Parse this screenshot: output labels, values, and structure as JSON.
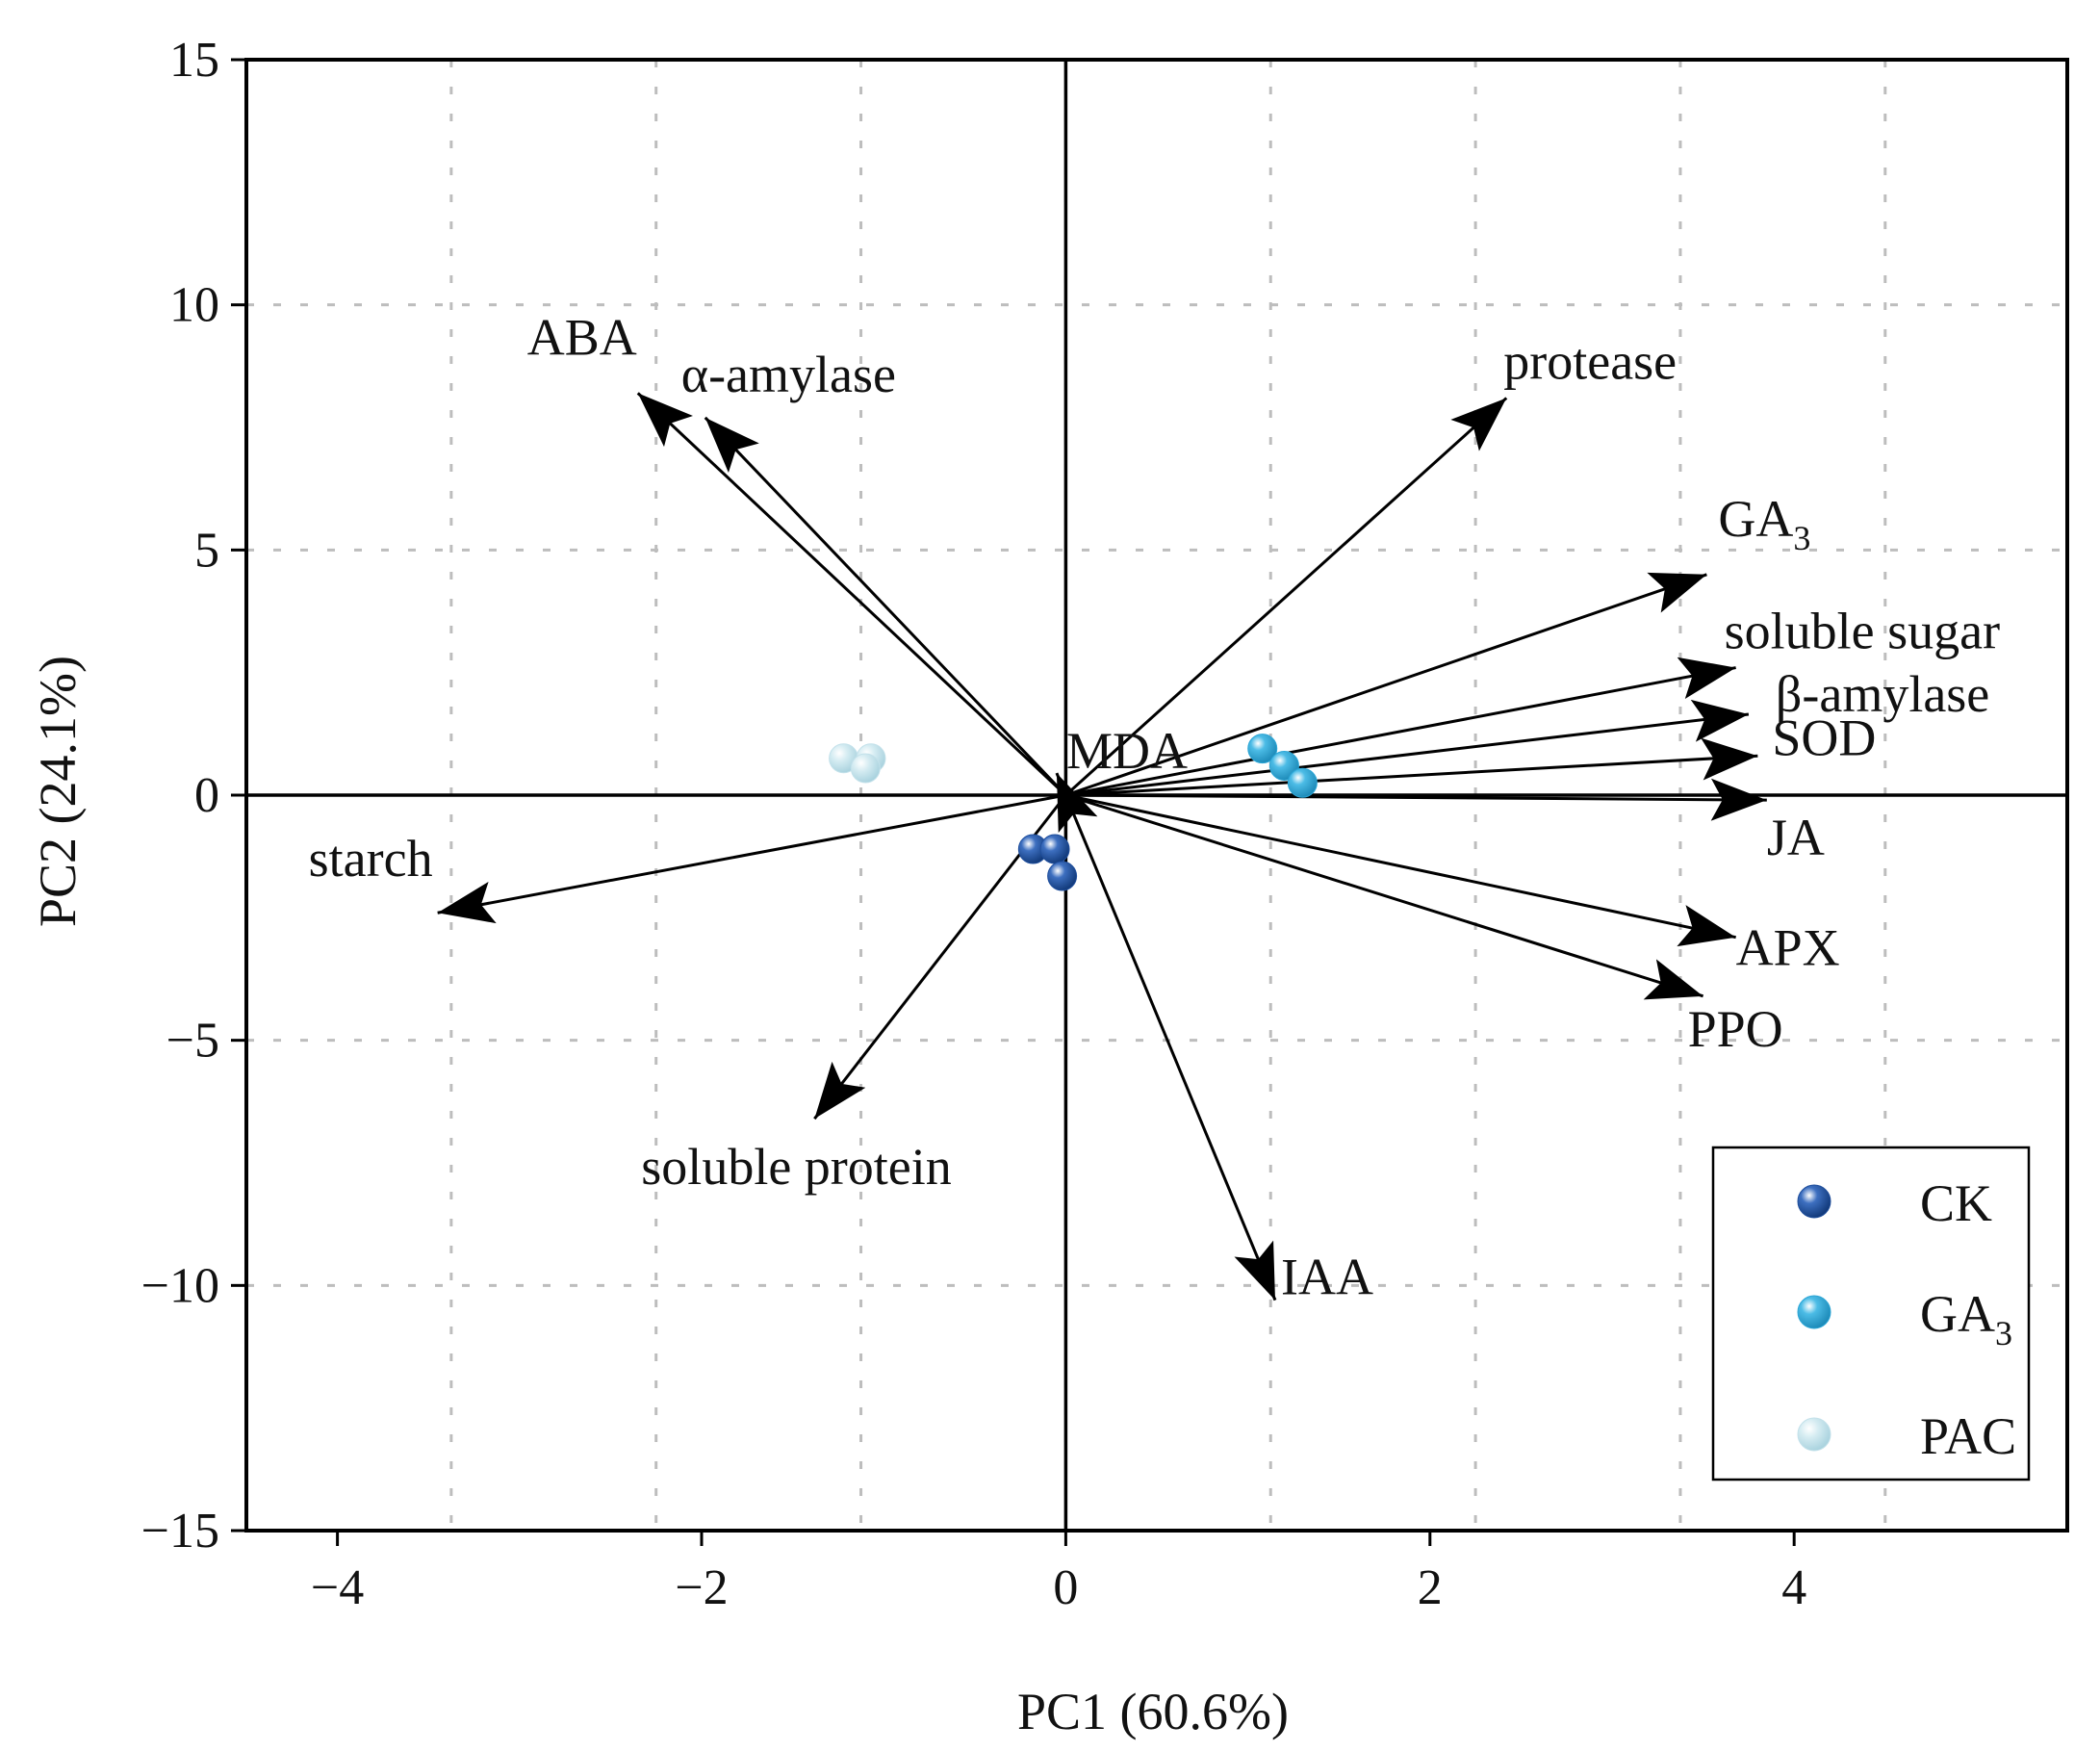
{
  "chart_data": {
    "type": "scatter",
    "subtype": "pca-biplot",
    "xlabel": "PC1 (60.6%)",
    "ylabel": "PC2 (24.1%)",
    "xlim": [
      -4.5,
      5.5
    ],
    "ylim": [
      -15,
      15
    ],
    "xticks": [
      -4,
      -2,
      0,
      2,
      4
    ],
    "xtick_labels": [
      "−4",
      "−2",
      "0",
      "2",
      "4"
    ],
    "yticks": [
      -15,
      -10,
      -5,
      0,
      5,
      10,
      15
    ],
    "ytick_labels": [
      "−15",
      "−10",
      "−5",
      "0",
      "5",
      "10",
      "15"
    ],
    "grid_x": [
      -3.375,
      -2.25,
      -1.125,
      0,
      1.125,
      2.25,
      3.375,
      4.5
    ],
    "grid_y": [
      -10,
      -5,
      5,
      10
    ],
    "grid": true,
    "loadings": [
      {
        "name": "ABA",
        "label_parts": [
          {
            "t": "ABA"
          }
        ],
        "x": -2.35,
        "y": 8.2
      },
      {
        "name": "alpha-amylase",
        "label_parts": [
          {
            "t": "α-amylase"
          }
        ],
        "x": -1.98,
        "y": 7.7
      },
      {
        "name": "protease",
        "label_parts": [
          {
            "t": "protease"
          }
        ],
        "x": 2.42,
        "y": 8.1
      },
      {
        "name": "GA3",
        "label_parts": [
          {
            "t": "GA"
          },
          {
            "t": "3",
            "sub": true
          }
        ],
        "x": 3.52,
        "y": 4.5
      },
      {
        "name": "soluble-sugar",
        "label_parts": [
          {
            "t": "soluble sugar"
          }
        ],
        "x": 3.68,
        "y": 2.6
      },
      {
        "name": "beta-amylase",
        "label_parts": [
          {
            "t": "β-amylase"
          }
        ],
        "x": 3.75,
        "y": 1.65
      },
      {
        "name": "SOD",
        "label_parts": [
          {
            "t": "SOD"
          }
        ],
        "x": 3.8,
        "y": 0.8
      },
      {
        "name": "JA",
        "label_parts": [
          {
            "t": "JA"
          }
        ],
        "x": 3.85,
        "y": -0.1
      },
      {
        "name": "APX",
        "label_parts": [
          {
            "t": "APX"
          }
        ],
        "x": 3.68,
        "y": -2.9
      },
      {
        "name": "PPO",
        "label_parts": [
          {
            "t": "PPO"
          }
        ],
        "x": 3.5,
        "y": -4.1
      },
      {
        "name": "IAA",
        "label_parts": [
          {
            "t": "IAA"
          }
        ],
        "x": 1.15,
        "y": -10.3
      },
      {
        "name": "soluble-protein",
        "label_parts": [
          {
            "t": "soluble protein"
          }
        ],
        "x": -1.38,
        "y": -6.6
      },
      {
        "name": "starch",
        "label_parts": [
          {
            "t": "starch"
          }
        ],
        "x": -3.45,
        "y": -2.4
      },
      {
        "name": "MDA",
        "label_parts": [
          {
            "t": "MDA"
          }
        ],
        "x": -0.05,
        "y": 0.45
      }
    ],
    "groups": [
      {
        "name": "CK",
        "label_parts": [
          {
            "t": "CK"
          }
        ],
        "color": "#1f4e9c",
        "points": [
          [
            -0.18,
            -1.1
          ],
          [
            -0.06,
            -1.1
          ],
          [
            -0.02,
            -1.65
          ]
        ]
      },
      {
        "name": "GA3",
        "label_parts": [
          {
            "t": "GA"
          },
          {
            "t": "3",
            "sub": true
          }
        ],
        "color": "#2ca6d6",
        "points": [
          [
            1.08,
            0.95
          ],
          [
            1.2,
            0.6
          ],
          [
            1.3,
            0.25
          ]
        ]
      },
      {
        "name": "PAC",
        "label_parts": [
          {
            "t": "PAC"
          }
        ],
        "color": "#c3e1ea",
        "points": [
          [
            -1.22,
            0.75
          ],
          [
            -1.07,
            0.75
          ],
          [
            -1.1,
            0.55
          ]
        ]
      }
    ],
    "legend": "bottom-right"
  }
}
